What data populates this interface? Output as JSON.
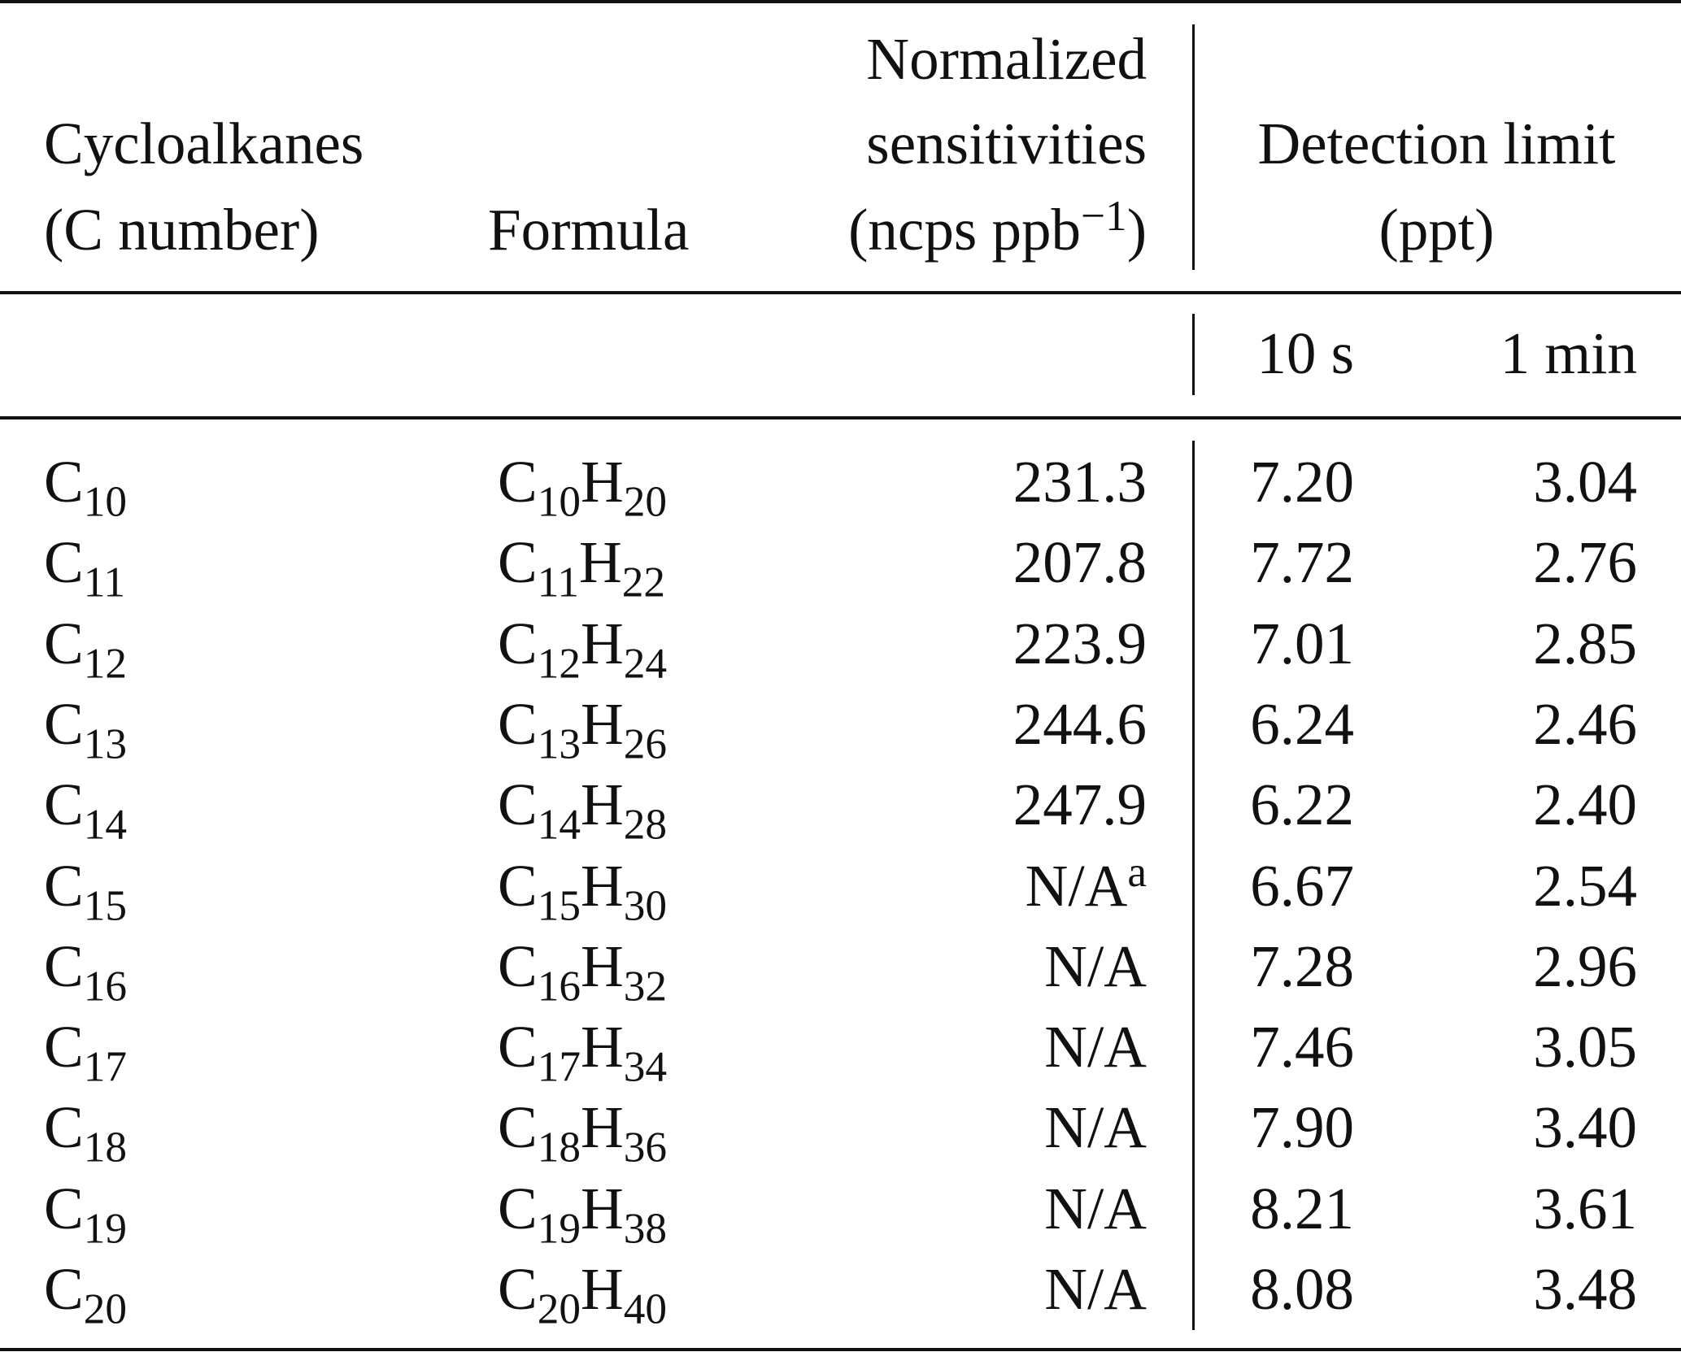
{
  "header": {
    "cycloalkanes_line1": "Cycloalkanes",
    "cycloalkanes_line2": "(C number)",
    "formula": "Formula",
    "sens_line1": "Normalized",
    "sens_line2": "sensitivities",
    "sens_line3_prefix": "(ncps ppb",
    "sens_line3_sup": "−1",
    "sens_line3_suffix": ")",
    "detection_line1": "Detection limit",
    "detection_line2": "(ppt)",
    "sub_10s": "10 s",
    "sub_1min": "1 min"
  },
  "rows": [
    {
      "c": "C",
      "cn": "10",
      "f_c": "C",
      "f_cn": "10",
      "f_h": "H",
      "f_hn": "20",
      "sens": "231.3",
      "sens_sup": "",
      "d10": "7.20",
      "d1m": "3.04"
    },
    {
      "c": "C",
      "cn": "11",
      "f_c": "C",
      "f_cn": "11",
      "f_h": "H",
      "f_hn": "22",
      "sens": "207.8",
      "sens_sup": "",
      "d10": "7.72",
      "d1m": "2.76"
    },
    {
      "c": "C",
      "cn": "12",
      "f_c": "C",
      "f_cn": "12",
      "f_h": "H",
      "f_hn": "24",
      "sens": "223.9",
      "sens_sup": "",
      "d10": "7.01",
      "d1m": "2.85"
    },
    {
      "c": "C",
      "cn": "13",
      "f_c": "C",
      "f_cn": "13",
      "f_h": "H",
      "f_hn": "26",
      "sens": "244.6",
      "sens_sup": "",
      "d10": "6.24",
      "d1m": "2.46"
    },
    {
      "c": "C",
      "cn": "14",
      "f_c": "C",
      "f_cn": "14",
      "f_h": "H",
      "f_hn": "28",
      "sens": "247.9",
      "sens_sup": "",
      "d10": "6.22",
      "d1m": "2.40"
    },
    {
      "c": "C",
      "cn": "15",
      "f_c": "C",
      "f_cn": "15",
      "f_h": "H",
      "f_hn": "30",
      "sens": "N/A",
      "sens_sup": "a",
      "d10": "6.67",
      "d1m": "2.54"
    },
    {
      "c": "C",
      "cn": "16",
      "f_c": "C",
      "f_cn": "16",
      "f_h": "H",
      "f_hn": "32",
      "sens": "N/A",
      "sens_sup": "",
      "d10": "7.28",
      "d1m": "2.96"
    },
    {
      "c": "C",
      "cn": "17",
      "f_c": "C",
      "f_cn": "17",
      "f_h": "H",
      "f_hn": "34",
      "sens": "N/A",
      "sens_sup": "",
      "d10": "7.46",
      "d1m": "3.05"
    },
    {
      "c": "C",
      "cn": "18",
      "f_c": "C",
      "f_cn": "18",
      "f_h": "H",
      "f_hn": "36",
      "sens": "N/A",
      "sens_sup": "",
      "d10": "7.90",
      "d1m": "3.40"
    },
    {
      "c": "C",
      "cn": "19",
      "f_c": "C",
      "f_cn": "19",
      "f_h": "H",
      "f_hn": "38",
      "sens": "N/A",
      "sens_sup": "",
      "d10": "8.21",
      "d1m": "3.61"
    },
    {
      "c": "C",
      "cn": "20",
      "f_c": "C",
      "f_cn": "20",
      "f_h": "H",
      "f_hn": "40",
      "sens": "N/A",
      "sens_sup": "",
      "d10": "8.08",
      "d1m": "3.48"
    }
  ]
}
